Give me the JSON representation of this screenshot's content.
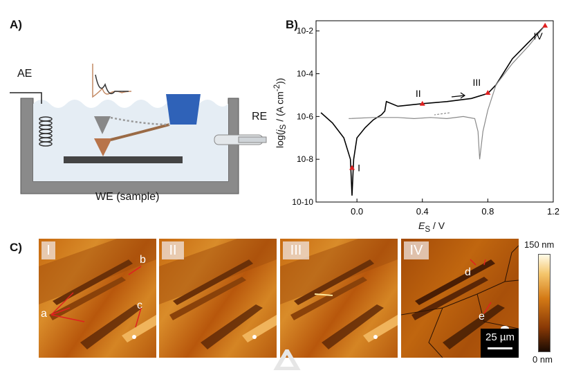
{
  "panels": {
    "a_label": "A)",
    "b_label": "B)",
    "c_label": "C)"
  },
  "schematic": {
    "ae_label": "AE",
    "re_label": "RE",
    "we_label": "WE (sample)"
  },
  "chart_data": {
    "type": "line",
    "xlabel": "E_S / V",
    "ylabel": "log(j_S / (A cm^-2))",
    "xlim": [
      -0.25,
      1.2
    ],
    "ylim": [
      1e-10,
      0.03
    ],
    "yscale": "log",
    "x_ticks": [
      "0.0",
      "0.4",
      "0.8",
      "1.2"
    ],
    "y_ticks": [
      "10^-10",
      "10^-8",
      "10^-6",
      "10^-4",
      "10^-2"
    ],
    "series": [
      {
        "color": "#000000",
        "x": [
          -0.22,
          -0.15,
          -0.08,
          -0.04,
          -0.03,
          -0.02,
          0.0,
          0.05,
          0.1,
          0.15,
          0.17,
          0.18,
          0.25,
          0.4,
          0.55,
          0.7,
          0.8,
          0.85,
          0.95,
          1.05,
          1.15
        ],
        "y": [
          1.5e-06,
          5e-07,
          1e-07,
          1e-08,
          2e-10,
          1e-08,
          1e-07,
          3e-07,
          7e-07,
          1.2e-06,
          1.8e-06,
          5e-06,
          3e-06,
          4e-06,
          5e-06,
          7e-06,
          1.2e-05,
          3e-05,
          0.0005,
          0.003,
          0.018
        ]
      },
      {
        "color": "#888888",
        "x": [
          1.15,
          1.05,
          0.95,
          0.85,
          0.8,
          0.77,
          0.75,
          0.74,
          0.72,
          0.65,
          0.55,
          0.45,
          0.35,
          0.25,
          0.1,
          -0.05
        ],
        "y": [
          0.018,
          0.002,
          0.0003,
          3e-05,
          2e-06,
          2e-07,
          1e-08,
          2e-07,
          8e-07,
          1e-06,
          8e-07,
          9e-07,
          8e-07,
          9e-07,
          9e-07,
          8e-07
        ]
      }
    ],
    "annotations": [
      {
        "label": "I",
        "x": -0.03,
        "y": 4e-09
      },
      {
        "label": "II",
        "x": 0.4,
        "y": 4e-06
      },
      {
        "label": "III",
        "x": 0.8,
        "y": 1.3e-05
      },
      {
        "label": "IV",
        "x": 1.15,
        "y": 0.018
      }
    ]
  },
  "afm": {
    "frames": [
      "I",
      "II",
      "III",
      "IV"
    ],
    "labels_frame1": [
      "a",
      "b",
      "c"
    ],
    "labels_frame4": [
      "d",
      "e"
    ],
    "scale_bar": "25 µm",
    "colorbar_max": "150 nm",
    "colorbar_min": "0 nm"
  },
  "watermark": {
    "name": "logo-watermark"
  }
}
